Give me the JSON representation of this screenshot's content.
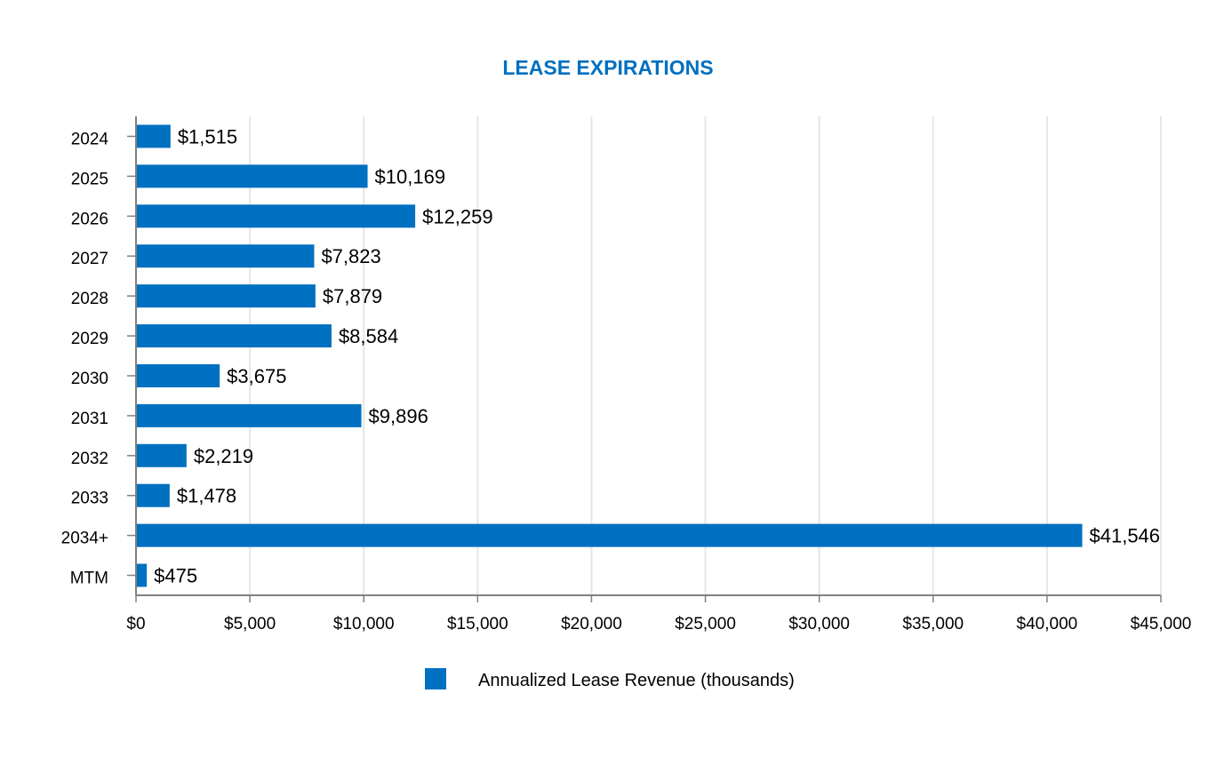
{
  "chart_data": {
    "type": "bar",
    "orientation": "horizontal",
    "title": "LEASE EXPIRATIONS",
    "categories": [
      "2024",
      "2025",
      "2026",
      "2027",
      "2028",
      "2029",
      "2030",
      "2031",
      "2032",
      "2033",
      "2034+",
      "MTM"
    ],
    "values": [
      1515,
      10169,
      12259,
      7823,
      7879,
      8584,
      3675,
      9896,
      2219,
      1478,
      41546,
      475
    ],
    "data_labels": [
      "$1,515",
      "$10,169",
      "$12,259",
      "$7,823",
      "$7,879",
      "$8,584",
      "$3,675",
      "$9,896",
      "$2,219",
      "$1,478",
      "$41,546",
      "$475"
    ],
    "xlim": [
      0,
      45000
    ],
    "x_ticks": [
      0,
      5000,
      10000,
      15000,
      20000,
      25000,
      30000,
      35000,
      40000,
      45000
    ],
    "x_tick_labels": [
      "$0",
      "$5,000",
      "$10,000",
      "$15,000",
      "$20,000",
      "$25,000",
      "$30,000",
      "$35,000",
      "$40,000",
      "$45,000"
    ],
    "xlabel": "",
    "ylabel": "",
    "grid": "vertical",
    "legend": {
      "position": "bottom",
      "entries": [
        "Annualized Lease Revenue (thousands)"
      ]
    },
    "colors": {
      "bar": "#0070c0",
      "title": "#0070c0",
      "grid": "#e6e6e6",
      "axis": "#808080"
    }
  }
}
